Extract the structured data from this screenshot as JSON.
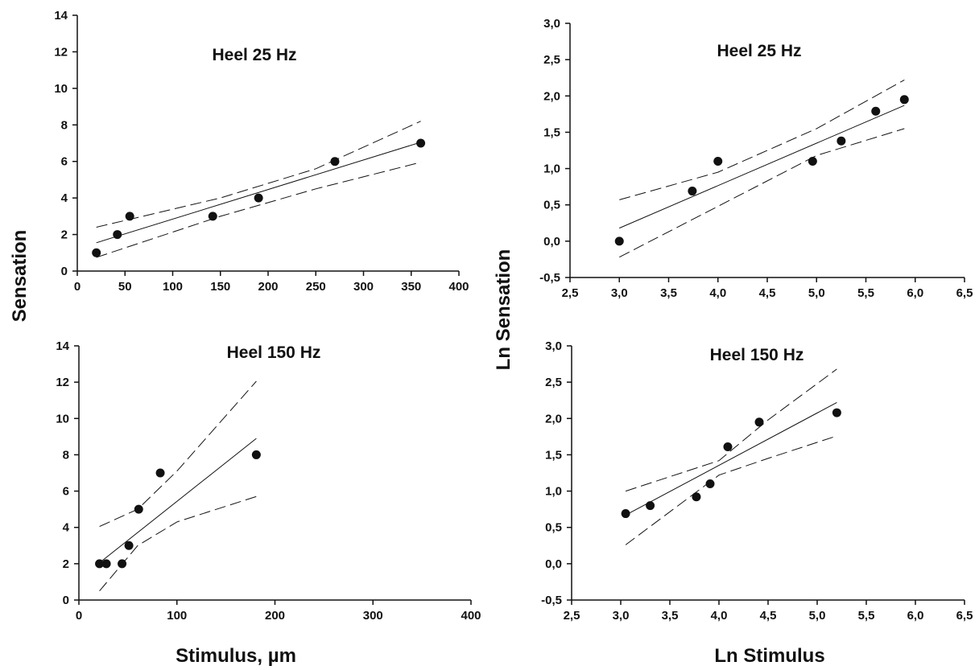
{
  "labels": {
    "ylabel_left": "Sensation",
    "ylabel_right": "Ln Sensation",
    "xlabel_left": "Stimulus, µm",
    "xlabel_right": "Ln Stimulus"
  },
  "colors": {
    "ink": "#111111",
    "background": "#ffffff"
  },
  "chart_data": [
    {
      "id": "heel25-linear",
      "type": "scatter",
      "title": "Heel 25 Hz",
      "xlim": [
        0,
        400
      ],
      "ylim": [
        0,
        14
      ],
      "xticks": [
        "0",
        "50",
        "100",
        "150",
        "200",
        "250",
        "300",
        "350",
        "400"
      ],
      "yticks": [
        "0",
        "2",
        "4",
        "6",
        "8",
        "10",
        "12",
        "14"
      ],
      "xtick_values": [
        0,
        50,
        100,
        150,
        200,
        250,
        300,
        350,
        400
      ],
      "ytick_values": [
        0,
        2,
        4,
        6,
        8,
        10,
        12,
        14
      ],
      "points": [
        [
          20,
          1
        ],
        [
          42,
          2
        ],
        [
          55,
          3
        ],
        [
          142,
          3
        ],
        [
          190,
          4
        ],
        [
          270,
          6
        ],
        [
          360,
          7
        ]
      ],
      "fit": [
        [
          20,
          1.55
        ],
        [
          360,
          7.05
        ]
      ],
      "ci_upper": [
        [
          20,
          2.4
        ],
        [
          150,
          4.0
        ],
        [
          250,
          5.6
        ],
        [
          360,
          8.2
        ]
      ],
      "ci_lower": [
        [
          20,
          0.75
        ],
        [
          150,
          3.0
        ],
        [
          250,
          4.5
        ],
        [
          360,
          5.95
        ]
      ],
      "grid": false
    },
    {
      "id": "heel25-log",
      "type": "scatter",
      "title": "Heel 25 Hz",
      "xlim": [
        2.5,
        6.5
      ],
      "ylim": [
        -0.5,
        3.0
      ],
      "xticks": [
        "2,5",
        "3,0",
        "3,5",
        "4,0",
        "4,5",
        "5,0",
        "5,5",
        "6,0",
        "6,5"
      ],
      "yticks": [
        "-0,5",
        "0,0",
        "0,5",
        "1,0",
        "1,5",
        "2,0",
        "2,5",
        "3,0"
      ],
      "xtick_values": [
        2.5,
        3.0,
        3.5,
        4.0,
        4.5,
        5.0,
        5.5,
        6.0,
        6.5
      ],
      "ytick_values": [
        -0.5,
        0.0,
        0.5,
        1.0,
        1.5,
        2.0,
        2.5,
        3.0
      ],
      "points": [
        [
          3.0,
          0.0
        ],
        [
          3.74,
          0.69
        ],
        [
          4.0,
          1.1
        ],
        [
          4.96,
          1.1
        ],
        [
          5.25,
          1.38
        ],
        [
          5.6,
          1.79
        ],
        [
          5.89,
          1.95
        ]
      ],
      "fit": [
        [
          3.0,
          0.18
        ],
        [
          5.89,
          1.87
        ]
      ],
      "ci_upper": [
        [
          3.0,
          0.57
        ],
        [
          4.0,
          0.95
        ],
        [
          5.0,
          1.55
        ],
        [
          5.89,
          2.22
        ]
      ],
      "ci_lower": [
        [
          3.0,
          -0.22
        ],
        [
          4.0,
          0.48
        ],
        [
          5.0,
          1.18
        ],
        [
          5.89,
          1.55
        ]
      ],
      "grid": false
    },
    {
      "id": "heel150-linear",
      "type": "scatter",
      "title": "Heel 150 Hz",
      "xlim": [
        0,
        400
      ],
      "ylim": [
        0,
        14
      ],
      "xticks": [
        "0",
        "100",
        "200",
        "300",
        "400"
      ],
      "yticks": [
        "0",
        "2",
        "4",
        "6",
        "8",
        "10",
        "12",
        "14"
      ],
      "xtick_values": [
        0,
        100,
        200,
        300,
        400
      ],
      "ytick_values": [
        0,
        2,
        4,
        6,
        8,
        10,
        12,
        14
      ],
      "points": [
        [
          21,
          2
        ],
        [
          28,
          2
        ],
        [
          44,
          2
        ],
        [
          51,
          3
        ],
        [
          61,
          5
        ],
        [
          83,
          7
        ],
        [
          181,
          8
        ]
      ],
      "fit": [
        [
          21,
          2.05
        ],
        [
          181,
          8.9
        ]
      ],
      "ci_upper": [
        [
          21,
          4.05
        ],
        [
          60,
          5.0
        ],
        [
          100,
          7.1
        ],
        [
          181,
          12.05
        ]
      ],
      "ci_lower": [
        [
          21,
          0.5
        ],
        [
          60,
          3.0
        ],
        [
          100,
          4.3
        ],
        [
          181,
          5.7
        ]
      ],
      "grid": false
    },
    {
      "id": "heel150-log",
      "type": "scatter",
      "title": "Heel 150 Hz",
      "xlim": [
        2.5,
        6.5
      ],
      "ylim": [
        -0.5,
        3.0
      ],
      "xticks": [
        "2,5",
        "3,0",
        "3,5",
        "4,0",
        "4,5",
        "5,0",
        "5,5",
        "6,0",
        "6,5"
      ],
      "yticks": [
        "-0,5",
        "0,0",
        "0,5",
        "1,0",
        "1,5",
        "2,0",
        "2,5",
        "3,0"
      ],
      "xtick_values": [
        2.5,
        3.0,
        3.5,
        4.0,
        4.5,
        5.0,
        5.5,
        6.0,
        6.5
      ],
      "ytick_values": [
        -0.5,
        0.0,
        0.5,
        1.0,
        1.5,
        2.0,
        2.5,
        3.0
      ],
      "points": [
        [
          3.05,
          0.69
        ],
        [
          3.3,
          0.8
        ],
        [
          3.77,
          0.92
        ],
        [
          3.91,
          1.1
        ],
        [
          4.09,
          1.61
        ],
        [
          4.41,
          1.95
        ],
        [
          5.2,
          2.08
        ]
      ],
      "fit": [
        [
          3.05,
          0.67
        ],
        [
          5.2,
          2.22
        ]
      ],
      "ci_upper": [
        [
          3.05,
          1.0
        ],
        [
          4.0,
          1.42
        ],
        [
          4.5,
          1.98
        ],
        [
          5.2,
          2.68
        ]
      ],
      "ci_lower": [
        [
          3.05,
          0.26
        ],
        [
          4.0,
          1.22
        ],
        [
          4.5,
          1.45
        ],
        [
          5.2,
          1.76
        ]
      ],
      "grid": false
    }
  ]
}
